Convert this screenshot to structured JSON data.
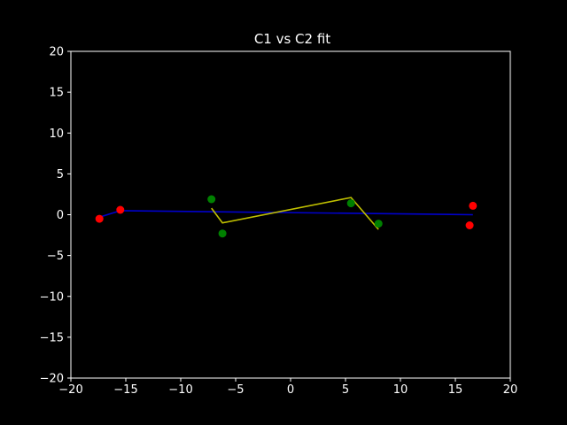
{
  "chart_data": {
    "type": "scatter",
    "title": "C1 vs C2 fit",
    "xlabel": "",
    "ylabel": "",
    "xlim": [
      -20,
      20
    ],
    "ylim": [
      -20,
      20
    ],
    "x_ticks": [
      -20,
      -15,
      -10,
      -5,
      0,
      5,
      10,
      15,
      20
    ],
    "y_ticks": [
      -20,
      -15,
      -10,
      -5,
      0,
      5,
      10,
      15,
      20
    ],
    "x_tick_labels": [
      "−20",
      "−15",
      "−10",
      "−5",
      "0",
      "5",
      "10",
      "15",
      "20"
    ],
    "y_tick_labels": [
      "−20",
      "−15",
      "−10",
      "−5",
      "0",
      "5",
      "10",
      "15",
      "20"
    ],
    "grid": false,
    "background_color": "#000000",
    "foreground_color": "#ffffff",
    "scatter_series": [
      {
        "color": "#ff0000",
        "points": [
          {
            "x": -17.4,
            "y": -0.5
          },
          {
            "x": -15.5,
            "y": 0.6
          },
          {
            "x": 16.3,
            "y": -1.3
          },
          {
            "x": 16.6,
            "y": 1.1
          }
        ]
      },
      {
        "color": "#008000",
        "points": [
          {
            "x": -7.2,
            "y": 1.9
          },
          {
            "x": -6.2,
            "y": -2.3
          },
          {
            "x": 5.5,
            "y": 1.4
          },
          {
            "x": 8.0,
            "y": -1.1
          }
        ]
      }
    ],
    "line_series": [
      {
        "color": "#0000cc",
        "points": [
          {
            "x": -17.4,
            "y": -0.3
          },
          {
            "x": -15.5,
            "y": 0.5
          },
          {
            "x": 16.6,
            "y": 0.0
          }
        ]
      },
      {
        "color": "#bfbf00",
        "points": [
          {
            "x": -7.2,
            "y": 0.8
          },
          {
            "x": -6.2,
            "y": -1.0
          },
          {
            "x": 5.5,
            "y": 2.1
          },
          {
            "x": 8.0,
            "y": -1.8
          }
        ]
      }
    ]
  }
}
